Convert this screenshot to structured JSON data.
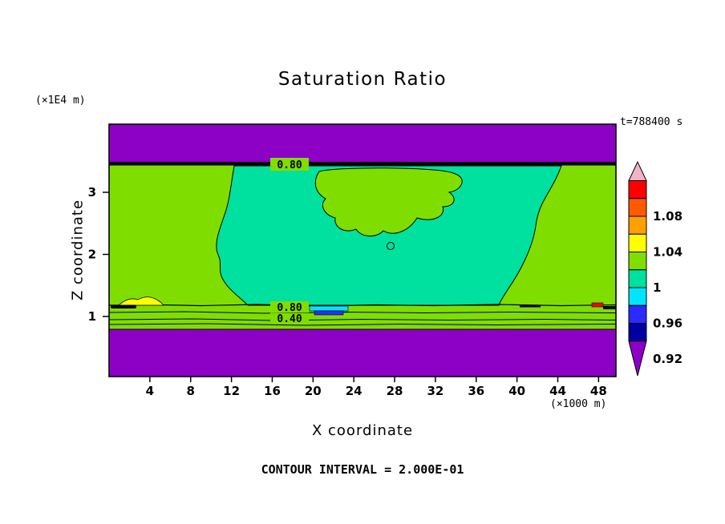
{
  "title": "Saturation Ratio",
  "time_label": "t=788400 s",
  "contour_note": "CONTOUR INTERVAL = 2.000E-01",
  "y_axis": {
    "label": "Z coordinate",
    "unit": "(×1E4 m)",
    "ticks": [
      "1",
      "2",
      "3"
    ]
  },
  "x_axis": {
    "label": "X coordinate",
    "unit": "(×1000 m)",
    "ticks": [
      "4",
      "8",
      "12",
      "16",
      "20",
      "24",
      "28",
      "32",
      "36",
      "40",
      "44",
      "48"
    ]
  },
  "contour_labels": [
    "0.80",
    "0.80",
    "0.40"
  ],
  "colorbar": {
    "labels": [
      "1.08",
      "1.04",
      "1",
      "0.96",
      "0.92"
    ],
    "colors": [
      "#FF0000",
      "#FF5A00",
      "#FFA000",
      "#FFFF00",
      "#7FDE00",
      "#00E09E",
      "#00E5FF",
      "#2B2BFF",
      "#0000A0"
    ],
    "arrow_top_color": "#F0B4C8",
    "arrow_bottom_color": "#8D00C6"
  },
  "plot_colors": {
    "purple": "#8D00C6",
    "green": "#7FDE00",
    "teal": "#00E09E",
    "yellow": "#FFFF00",
    "cyan": "#00E5FF",
    "blue": "#2B2BFF",
    "red": "#FF0000"
  },
  "chart_data": {
    "type": "heatmap",
    "subtype": "filled contour plot",
    "title": "Saturation Ratio",
    "xlabel": "X coordinate",
    "x_unit": "(×1000 m)",
    "ylabel": "Z coordinate",
    "y_unit": "(×1E4 m)",
    "x_ticks": [
      4,
      8,
      12,
      16,
      20,
      24,
      28,
      32,
      36,
      40,
      44,
      48
    ],
    "y_ticks": [
      1,
      2,
      3
    ],
    "x_range": [
      0,
      50
    ],
    "y_range": [
      0,
      4.1
    ],
    "time_label": "t=788400 s",
    "contour_interval": 0.2,
    "colorbar_ticks": [
      1.08,
      1.04,
      1,
      0.96,
      0.92
    ],
    "labeled_contours": [
      {
        "value": 0.8,
        "location": "horizontal contour at z ≈ 3.45 (×1E4 m), spans full width"
      },
      {
        "value": 0.8,
        "location": "horizontal contour at z ≈ 1.15 (×1E4 m), spans full width"
      },
      {
        "value": 0.4,
        "location": "horizontal contour at z ≈ 0.95 (×1E4 m), spans full width"
      }
    ],
    "regions": [
      {
        "name": "top layer",
        "z_from": 3.5,
        "z_to": 4.1,
        "x_from": 0,
        "x_to": 50,
        "value": "saturation ratio < 0.4",
        "color": "purple"
      },
      {
        "name": "transition band",
        "z_from": 3.4,
        "z_to": 3.5,
        "x_from": 0,
        "x_to": 50,
        "value": "tightly packed contours 0.4–0.8 (thick black band)",
        "color": "black"
      },
      {
        "name": "left interior",
        "z_from": 1.2,
        "z_to": 3.4,
        "x_from": 0,
        "x_to": 12,
        "value": "≈ 1.00–1.04",
        "color": "yellow-green"
      },
      {
        "name": "central interior",
        "z_from": 1.2,
        "z_to": 3.4,
        "x_from": 12,
        "x_to": 44,
        "value": "≈ 0.96–1.00",
        "color": "spring-green"
      },
      {
        "name": "upper-central island",
        "z_from": 2.3,
        "z_to": 3.4,
        "x_from": 20,
        "x_to": 35,
        "value": "≈ 1.00–1.04",
        "color": "yellow-green"
      },
      {
        "name": "right interior",
        "z_from": 1.2,
        "z_to": 3.4,
        "x_from": 44,
        "x_to": 50,
        "value": "≈ 1.00–1.04",
        "color": "yellow-green"
      },
      {
        "name": "thin layer near z ≈ 1.0–1.15",
        "value": "mixed values with local pockets: yellow (≈1.04), cyan/blue (≈0.92–0.96), red (≈1.08), dense 0.4/0.8 contours"
      },
      {
        "name": "bottom layer",
        "z_from": 0,
        "z_to": 0.8,
        "x_from": 0,
        "x_to": 50,
        "value": "saturation ratio < 0.4",
        "color": "purple"
      }
    ]
  }
}
